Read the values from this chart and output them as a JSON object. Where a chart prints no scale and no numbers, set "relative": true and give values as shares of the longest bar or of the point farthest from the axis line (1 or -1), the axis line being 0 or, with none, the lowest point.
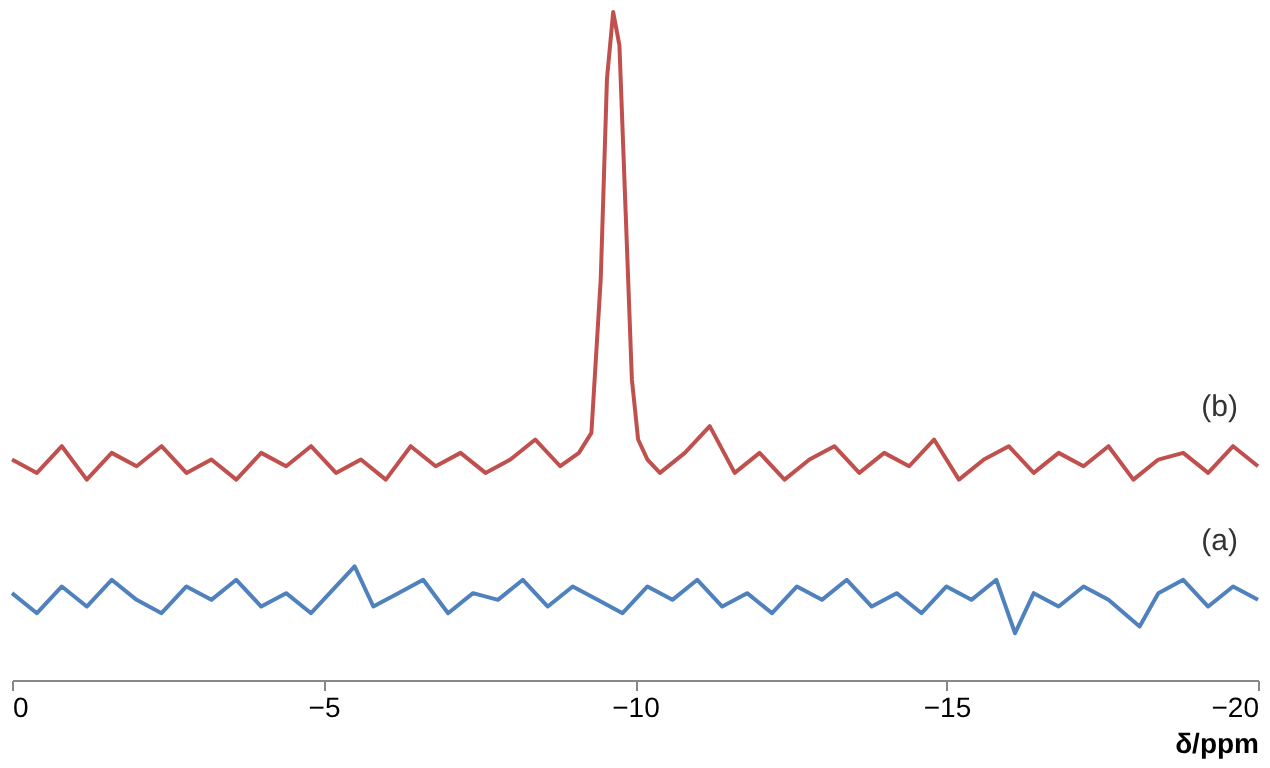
{
  "chart_data": {
    "type": "line",
    "relative": true,
    "xlabel": "δ/ppm",
    "xlim": [
      0,
      -20
    ],
    "xticks": [
      0,
      -5,
      -10,
      -15,
      -20
    ],
    "series": [
      {
        "name": "(b)",
        "color": "#c0504d",
        "x": [
          0,
          -0.4,
          -0.8,
          -1.2,
          -1.6,
          -2.0,
          -2.4,
          -2.8,
          -3.2,
          -3.6,
          -4.0,
          -4.4,
          -4.8,
          -5.2,
          -5.6,
          -6.0,
          -6.4,
          -6.8,
          -7.2,
          -7.6,
          -8.0,
          -8.4,
          -8.8,
          -9.1,
          -9.3,
          -9.45,
          -9.55,
          -9.65,
          -9.75,
          -9.85,
          -9.95,
          -10.05,
          -10.2,
          -10.4,
          -10.8,
          -11.2,
          -11.6,
          -12.0,
          -12.4,
          -12.8,
          -13.2,
          -13.6,
          -14.0,
          -14.4,
          -14.8,
          -15.2,
          -15.6,
          -16.0,
          -16.4,
          -16.8,
          -17.2,
          -17.6,
          -18.0,
          -18.4,
          -18.8,
          -19.2,
          -19.6,
          -20.0
        ],
        "values": [
          0.33,
          0.31,
          0.35,
          0.3,
          0.34,
          0.32,
          0.35,
          0.31,
          0.33,
          0.3,
          0.34,
          0.32,
          0.35,
          0.31,
          0.33,
          0.3,
          0.35,
          0.32,
          0.34,
          0.31,
          0.33,
          0.36,
          0.32,
          0.34,
          0.37,
          0.6,
          0.9,
          1.0,
          0.95,
          0.7,
          0.45,
          0.36,
          0.33,
          0.31,
          0.34,
          0.38,
          0.31,
          0.34,
          0.3,
          0.33,
          0.35,
          0.31,
          0.34,
          0.32,
          0.36,
          0.3,
          0.33,
          0.35,
          0.31,
          0.34,
          0.32,
          0.35,
          0.3,
          0.33,
          0.34,
          0.31,
          0.35,
          0.32
        ]
      },
      {
        "name": "(a)",
        "color": "#4f81bd",
        "x": [
          0,
          -0.4,
          -0.8,
          -1.2,
          -1.6,
          -2.0,
          -2.4,
          -2.8,
          -3.2,
          -3.6,
          -4.0,
          -4.4,
          -4.8,
          -5.2,
          -5.5,
          -5.8,
          -6.2,
          -6.6,
          -7.0,
          -7.4,
          -7.8,
          -8.2,
          -8.6,
          -9.0,
          -9.4,
          -9.8,
          -10.2,
          -10.6,
          -11.0,
          -11.4,
          -11.8,
          -12.2,
          -12.6,
          -13.0,
          -13.4,
          -13.8,
          -14.2,
          -14.6,
          -15.0,
          -15.4,
          -15.8,
          -16.1,
          -16.4,
          -16.8,
          -17.2,
          -17.6,
          -18.1,
          -18.4,
          -18.8,
          -19.2,
          -19.6,
          -20.0
        ],
        "values": [
          0.13,
          0.1,
          0.14,
          0.11,
          0.15,
          0.12,
          0.1,
          0.14,
          0.12,
          0.15,
          0.11,
          0.13,
          0.1,
          0.14,
          0.17,
          0.11,
          0.13,
          0.15,
          0.1,
          0.13,
          0.12,
          0.15,
          0.11,
          0.14,
          0.12,
          0.1,
          0.14,
          0.12,
          0.15,
          0.11,
          0.13,
          0.1,
          0.14,
          0.12,
          0.15,
          0.11,
          0.13,
          0.1,
          0.14,
          0.12,
          0.15,
          0.07,
          0.13,
          0.11,
          0.14,
          0.12,
          0.08,
          0.13,
          0.15,
          0.11,
          0.14,
          0.12
        ]
      }
    ]
  }
}
